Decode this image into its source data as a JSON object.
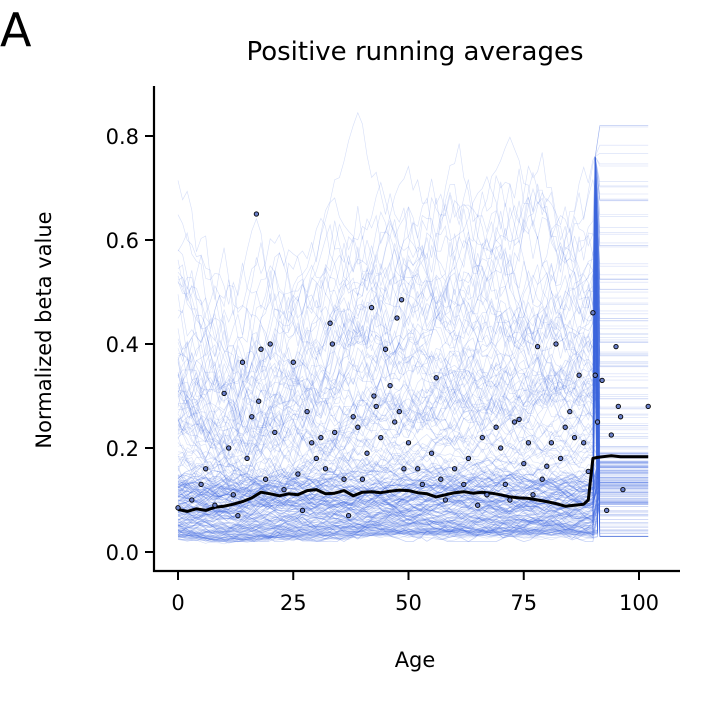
{
  "panel_label": "A",
  "chart_data": {
    "type": "line",
    "title": "Positive running averages",
    "xlabel": "Age",
    "ylabel": "Normalized beta value",
    "xlim": [
      -5,
      108
    ],
    "ylim": [
      -0.03,
      0.9
    ],
    "xticks": [
      0,
      25,
      50,
      75,
      100
    ],
    "xtick_labels": [
      "0",
      "25",
      "50",
      "75",
      "100"
    ],
    "yticks": [
      0.0,
      0.2,
      0.4,
      0.6,
      0.8
    ],
    "ytick_labels": [
      "0.0",
      "0.2",
      "0.4",
      "0.6",
      "0.8"
    ],
    "grid": false,
    "legend": "none",
    "colors": {
      "traces": "#4169e1",
      "mean": "#000000",
      "points": "#6a7fc8"
    },
    "series": [
      {
        "kind": "mean-line",
        "x": [
          0,
          2,
          4,
          6,
          8,
          10,
          12,
          14,
          16,
          18,
          20,
          22,
          24,
          26,
          28,
          30,
          32,
          34,
          36,
          38,
          40,
          42,
          44,
          46,
          48,
          50,
          52,
          54,
          56,
          58,
          60,
          62,
          64,
          66,
          68,
          70,
          72,
          74,
          76,
          78,
          80,
          82,
          84,
          86,
          88,
          89,
          90,
          91,
          92,
          94,
          96,
          98,
          100,
          102
        ],
        "y": [
          0.082,
          0.078,
          0.083,
          0.08,
          0.086,
          0.088,
          0.092,
          0.097,
          0.104,
          0.115,
          0.112,
          0.108,
          0.112,
          0.11,
          0.118,
          0.12,
          0.112,
          0.113,
          0.118,
          0.108,
          0.115,
          0.116,
          0.114,
          0.117,
          0.119,
          0.118,
          0.114,
          0.112,
          0.106,
          0.11,
          0.114,
          0.116,
          0.113,
          0.115,
          0.113,
          0.11,
          0.106,
          0.104,
          0.103,
          0.1,
          0.097,
          0.093,
          0.088,
          0.09,
          0.092,
          0.1,
          0.18,
          0.182,
          0.183,
          0.185,
          0.183,
          0.183,
          0.183,
          0.183
        ]
      },
      {
        "kind": "scatter-points",
        "points": [
          [
            0,
            0.085
          ],
          [
            3,
            0.1
          ],
          [
            5,
            0.13
          ],
          [
            6,
            0.16
          ],
          [
            8,
            0.09
          ],
          [
            10,
            0.305
          ],
          [
            11,
            0.2
          ],
          [
            12,
            0.11
          ],
          [
            13,
            0.07
          ],
          [
            14,
            0.365
          ],
          [
            15,
            0.18
          ],
          [
            16,
            0.26
          ],
          [
            17,
            0.65
          ],
          [
            17.5,
            0.29
          ],
          [
            18,
            0.39
          ],
          [
            19,
            0.14
          ],
          [
            20,
            0.4
          ],
          [
            21,
            0.23
          ],
          [
            23,
            0.12
          ],
          [
            25,
            0.365
          ],
          [
            26,
            0.15
          ],
          [
            27,
            0.08
          ],
          [
            28,
            0.27
          ],
          [
            29,
            0.21
          ],
          [
            30,
            0.18
          ],
          [
            31,
            0.22
          ],
          [
            32,
            0.16
          ],
          [
            33,
            0.44
          ],
          [
            33.5,
            0.4
          ],
          [
            34,
            0.23
          ],
          [
            36,
            0.14
          ],
          [
            37,
            0.07
          ],
          [
            38,
            0.26
          ],
          [
            39,
            0.24
          ],
          [
            40,
            0.14
          ],
          [
            41,
            0.19
          ],
          [
            42,
            0.47
          ],
          [
            42.5,
            0.3
          ],
          [
            43,
            0.28
          ],
          [
            44,
            0.22
          ],
          [
            45,
            0.39
          ],
          [
            46,
            0.32
          ],
          [
            47,
            0.25
          ],
          [
            47.5,
            0.45
          ],
          [
            48,
            0.27
          ],
          [
            48.5,
            0.485
          ],
          [
            49,
            0.16
          ],
          [
            50,
            0.21
          ],
          [
            52,
            0.16
          ],
          [
            53,
            0.13
          ],
          [
            55,
            0.19
          ],
          [
            56,
            0.335
          ],
          [
            57,
            0.14
          ],
          [
            58,
            0.1
          ],
          [
            60,
            0.16
          ],
          [
            62,
            0.13
          ],
          [
            63,
            0.18
          ],
          [
            65,
            0.09
          ],
          [
            66,
            0.22
          ],
          [
            67,
            0.11
          ],
          [
            69,
            0.24
          ],
          [
            70,
            0.2
          ],
          [
            71,
            0.13
          ],
          [
            72,
            0.1
          ],
          [
            73,
            0.25
          ],
          [
            74,
            0.255
          ],
          [
            75,
            0.17
          ],
          [
            76,
            0.21
          ],
          [
            77,
            0.11
          ],
          [
            78,
            0.395
          ],
          [
            79,
            0.14
          ],
          [
            80,
            0.165
          ],
          [
            81,
            0.21
          ],
          [
            82,
            0.4
          ],
          [
            83,
            0.18
          ],
          [
            84,
            0.24
          ],
          [
            85,
            0.27
          ],
          [
            86,
            0.22
          ],
          [
            87,
            0.34
          ],
          [
            88,
            0.21
          ],
          [
            89,
            0.155
          ],
          [
            90,
            0.46
          ],
          [
            90.5,
            0.34
          ],
          [
            91,
            0.25
          ],
          [
            92,
            0.33
          ],
          [
            93,
            0.08
          ],
          [
            94,
            0.225
          ],
          [
            95,
            0.395
          ],
          [
            95.5,
            0.28
          ],
          [
            96,
            0.26
          ],
          [
            96.5,
            0.12
          ],
          [
            102,
            0.28
          ]
        ]
      }
    ]
  }
}
